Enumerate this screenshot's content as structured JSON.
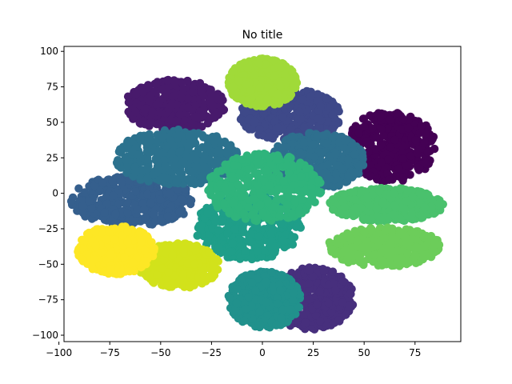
{
  "chart_data": {
    "type": "scatter",
    "title": "No title",
    "xlabel": "",
    "ylabel": "",
    "xlim": [
      -97.5,
      97.5
    ],
    "ylim": [
      -104.5,
      103.5
    ],
    "xticks": [
      -100,
      -75,
      -50,
      -25,
      0,
      25,
      50,
      75
    ],
    "yticks": [
      -100,
      -75,
      -50,
      -25,
      0,
      25,
      50,
      75,
      100
    ],
    "grid": false,
    "legend": "none",
    "series": [
      {
        "color": "#440154",
        "center": [
          63,
          33
        ],
        "rx": 22,
        "ry": 25
      },
      {
        "color": "#481a6c",
        "center": [
          -43,
          62
        ],
        "rx": 25,
        "ry": 18
      },
      {
        "color": "#472f7d",
        "center": [
          24,
          -74
        ],
        "rx": 21,
        "ry": 22
      },
      {
        "color": "#3e4989",
        "center": [
          14,
          55
        ],
        "rx": 25,
        "ry": 18
      },
      {
        "color": "#355f8d",
        "center": [
          -64,
          -5
        ],
        "rx": 30,
        "ry": 18
      },
      {
        "color": "#2c728e",
        "center": [
          -42,
          25
        ],
        "rx": 30,
        "ry": 20
      },
      {
        "color": "#2e6f8e",
        "center": [
          27,
          23
        ],
        "rx": 23,
        "ry": 20
      },
      {
        "color": "#21918c",
        "center": [
          1,
          -75
        ],
        "rx": 18,
        "ry": 20
      },
      {
        "color": "#1f9e89",
        "center": [
          -7,
          -24
        ],
        "rx": 26,
        "ry": 23
      },
      {
        "color": "#2fb47c",
        "center": [
          1,
          4
        ],
        "rx": 28,
        "ry": 24
      },
      {
        "color": "#4ac16d",
        "center": [
          61,
          -8
        ],
        "rx": 28,
        "ry": 12
      },
      {
        "color": "#6ccd5a",
        "center": [
          60,
          -38
        ],
        "rx": 28,
        "ry": 14
      },
      {
        "color": "#a0da39",
        "center": [
          0,
          78
        ],
        "rx": 17,
        "ry": 17
      },
      {
        "color": "#d2e21b",
        "center": [
          -41,
          -51
        ],
        "rx": 20,
        "ry": 16
      },
      {
        "color": "#fde725",
        "center": [
          -72,
          -40
        ],
        "rx": 19,
        "ry": 17
      }
    ]
  }
}
